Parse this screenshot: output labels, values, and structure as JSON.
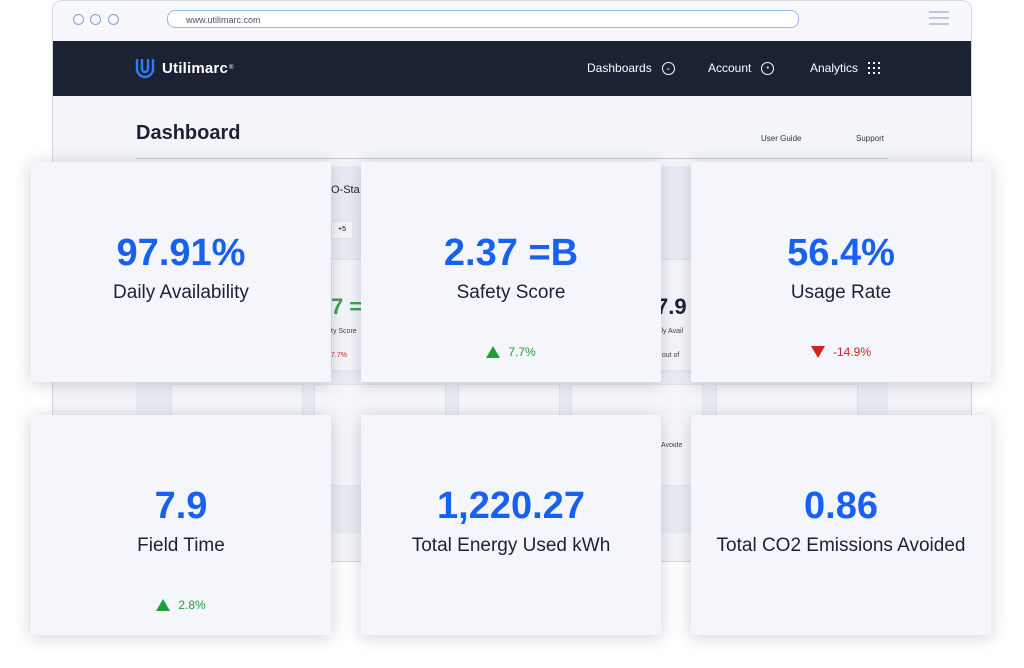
{
  "browser": {
    "url": "www.utilimarc.com"
  },
  "nav": {
    "logo_text": "Utilimarc",
    "trademark": "®",
    "items": [
      {
        "label": "Dashboards",
        "icon": "chevron-circle-icon"
      },
      {
        "label": "Account",
        "icon": "user-circle-icon"
      },
      {
        "label": "Analytics",
        "icon": "grid-dots-icon"
      }
    ]
  },
  "page": {
    "title": "Dashboard",
    "links": [
      "User Guide",
      "Support"
    ]
  },
  "background_fragments": {
    "tab_text": "O-Sta",
    "badge": "+5",
    "frag_a": "7 =",
    "frag_a_label": "ty Score",
    "frag_a_change": "7.7%",
    "frag_b": "7.9",
    "frag_b_label": "aily Avail",
    "frag_b_sub": "9 out of",
    "frag_c": "s Avoide"
  },
  "cards": [
    {
      "value": "97.91%",
      "label": "Daily Availability"
    },
    {
      "value": "2.37 =B",
      "label": "Safety Score",
      "change": "7.7%",
      "direction": "up"
    },
    {
      "value": "56.4%",
      "label": "Usage Rate",
      "change": "-14.9%",
      "direction": "down"
    },
    {
      "value": "7.9",
      "label": "Field Time",
      "change": "2.8%",
      "direction": "up"
    },
    {
      "value": "1,220.27",
      "label": "Total Energy Used kWh"
    },
    {
      "value": "0.86",
      "label": "Total CO2 Emissions Avoided"
    }
  ],
  "colors": {
    "accent": "#1760f0",
    "nav_bg": "#1a2234",
    "positive": "#1d9e3c",
    "negative": "#d42222"
  }
}
